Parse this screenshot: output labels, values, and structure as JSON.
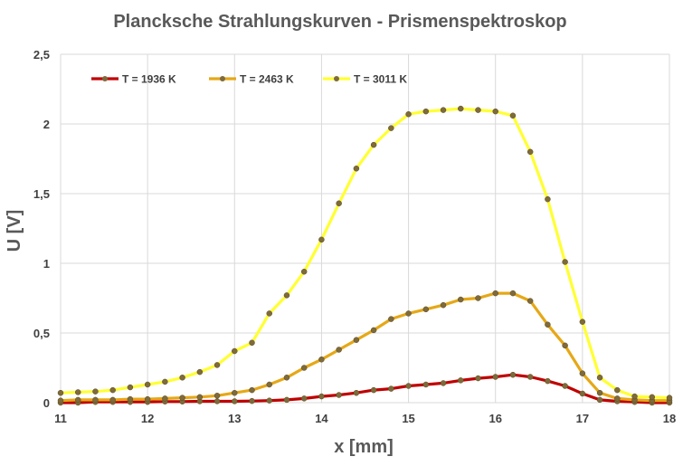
{
  "chart_data": {
    "type": "line",
    "title": "Plancksche Strahlungskurven - Prismenspektroskop",
    "xlabel": "x [mm]",
    "ylabel": "U [V]",
    "xlim": [
      11,
      18
    ],
    "ylim": [
      0,
      2.5
    ],
    "x_ticks": [
      11,
      12,
      13,
      14,
      15,
      16,
      17,
      18
    ],
    "x_tick_labels": [
      "11",
      "12",
      "13",
      "14",
      "15",
      "16",
      "17",
      "18"
    ],
    "y_ticks": [
      0,
      0.5,
      1,
      1.5,
      2,
      2.5
    ],
    "y_tick_labels": [
      "0",
      "0,5",
      "1",
      "1,5",
      "2",
      "2,5"
    ],
    "grid": true,
    "legend_position": "top-left",
    "x": [
      11.0,
      11.2,
      11.4,
      11.6,
      11.8,
      12.0,
      12.2,
      12.4,
      12.6,
      12.8,
      13.0,
      13.2,
      13.4,
      13.6,
      13.8,
      14.0,
      14.2,
      14.4,
      14.6,
      14.8,
      15.0,
      15.2,
      15.4,
      15.6,
      15.8,
      16.0,
      16.2,
      16.4,
      16.6,
      16.8,
      17.0,
      17.2,
      17.4,
      17.6,
      17.8,
      18.0
    ],
    "series": [
      {
        "name": "T = 1936 K",
        "color": "#c00000",
        "values": [
          0.0,
          0.0,
          0.005,
          0.005,
          0.005,
          0.005,
          0.008,
          0.008,
          0.01,
          0.01,
          0.01,
          0.012,
          0.015,
          0.02,
          0.03,
          0.045,
          0.055,
          0.07,
          0.09,
          0.1,
          0.12,
          0.13,
          0.14,
          0.16,
          0.175,
          0.185,
          0.2,
          0.185,
          0.155,
          0.12,
          0.065,
          0.02,
          0.01,
          0.005,
          0.0,
          0.0
        ]
      },
      {
        "name": "T = 2463 K",
        "color": "#e6a817",
        "values": [
          0.015,
          0.02,
          0.02,
          0.02,
          0.025,
          0.025,
          0.03,
          0.035,
          0.04,
          0.05,
          0.07,
          0.09,
          0.13,
          0.18,
          0.25,
          0.31,
          0.38,
          0.45,
          0.52,
          0.6,
          0.64,
          0.67,
          0.7,
          0.74,
          0.75,
          0.785,
          0.785,
          0.73,
          0.56,
          0.41,
          0.21,
          0.07,
          0.03,
          0.02,
          0.015,
          0.015
        ]
      },
      {
        "name": "T = 3011 K",
        "color": "#ffff33",
        "values": [
          0.07,
          0.075,
          0.08,
          0.09,
          0.11,
          0.13,
          0.15,
          0.18,
          0.22,
          0.27,
          0.37,
          0.43,
          0.64,
          0.77,
          0.94,
          1.17,
          1.43,
          1.68,
          1.85,
          1.97,
          2.07,
          2.09,
          2.1,
          2.11,
          2.1,
          2.09,
          2.06,
          1.8,
          1.46,
          1.01,
          0.58,
          0.18,
          0.09,
          0.045,
          0.04,
          0.035
        ]
      }
    ]
  }
}
